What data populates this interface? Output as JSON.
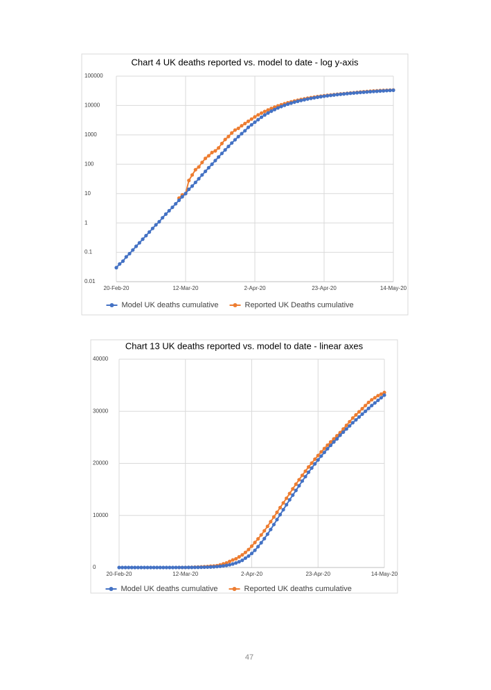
{
  "chart_data": [
    {
      "type": "line",
      "title": "Chart 4 UK deaths reported vs. model to date - log y-axis",
      "log_y": true,
      "grid": true,
      "legend": "bottom",
      "x": [
        "2020-02-20",
        "2020-02-21",
        "2020-02-22",
        "2020-02-23",
        "2020-02-24",
        "2020-02-25",
        "2020-02-26",
        "2020-02-27",
        "2020-02-28",
        "2020-02-29",
        "2020-03-01",
        "2020-03-02",
        "2020-03-03",
        "2020-03-04",
        "2020-03-05",
        "2020-03-06",
        "2020-03-07",
        "2020-03-08",
        "2020-03-09",
        "2020-03-10",
        "2020-03-11",
        "2020-03-12",
        "2020-03-13",
        "2020-03-14",
        "2020-03-15",
        "2020-03-16",
        "2020-03-17",
        "2020-03-18",
        "2020-03-19",
        "2020-03-20",
        "2020-03-21",
        "2020-03-22",
        "2020-03-23",
        "2020-03-24",
        "2020-03-25",
        "2020-03-26",
        "2020-03-27",
        "2020-03-28",
        "2020-03-29",
        "2020-03-30",
        "2020-03-31",
        "2020-04-01",
        "2020-04-02",
        "2020-04-03",
        "2020-04-04",
        "2020-04-05",
        "2020-04-06",
        "2020-04-07",
        "2020-04-08",
        "2020-04-09",
        "2020-04-10",
        "2020-04-11",
        "2020-04-12",
        "2020-04-13",
        "2020-04-14",
        "2020-04-15",
        "2020-04-16",
        "2020-04-17",
        "2020-04-18",
        "2020-04-19",
        "2020-04-20",
        "2020-04-21",
        "2020-04-22",
        "2020-04-23",
        "2020-04-24",
        "2020-04-25",
        "2020-04-26",
        "2020-04-27",
        "2020-04-28",
        "2020-04-29",
        "2020-04-30",
        "2020-05-01",
        "2020-05-02",
        "2020-05-03",
        "2020-05-04",
        "2020-05-05",
        "2020-05-06",
        "2020-05-07",
        "2020-05-08",
        "2020-05-09",
        "2020-05-10",
        "2020-05-11",
        "2020-05-12",
        "2020-05-13",
        "2020-05-14"
      ],
      "xlim": [
        "2020-02-20",
        "2020-05-14"
      ],
      "xticks": [
        {
          "value": "2020-02-20",
          "label": "20-Feb-20"
        },
        {
          "value": "2020-03-12",
          "label": "12-Mar-20"
        },
        {
          "value": "2020-04-02",
          "label": "2-Apr-20"
        },
        {
          "value": "2020-04-23",
          "label": "23-Apr-20"
        },
        {
          "value": "2020-05-14",
          "label": "14-May-20"
        }
      ],
      "ylim": [
        0.01,
        100000
      ],
      "yticks": [
        0.01,
        0.1,
        1,
        10,
        100,
        1000,
        10000,
        100000
      ],
      "series": [
        {
          "name": "Model UK deaths cumulative",
          "color": "#4472c4",
          "values": [
            0.03,
            0.04,
            0.05,
            0.07,
            0.09,
            0.12,
            0.16,
            0.21,
            0.28,
            0.37,
            0.49,
            0.65,
            0.86,
            1.1,
            1.5,
            2.0,
            2.6,
            3.4,
            4.5,
            5.9,
            7.8,
            10,
            14,
            18,
            24,
            32,
            43,
            57,
            76,
            100,
            133,
            176,
            233,
            307,
            403,
            526,
            680,
            870,
            1100,
            1380,
            1800,
            2200,
            2700,
            3300,
            4000,
            4750,
            5550,
            6400,
            7300,
            8250,
            9200,
            10150,
            11100,
            12050,
            13000,
            13900,
            14800,
            15700,
            16600,
            17450,
            18300,
            19100,
            19900,
            20650,
            21400,
            22100,
            22800,
            23450,
            24100,
            24700,
            25400,
            26000,
            26600,
            27200,
            27800,
            28350,
            28900,
            29450,
            30000,
            30550,
            31100,
            31600,
            32100,
            32600,
            33100
          ]
        },
        {
          "name": "Reported UK Deaths cumulative",
          "color": "#ed7d31",
          "values": [
            null,
            null,
            null,
            null,
            null,
            null,
            null,
            null,
            null,
            null,
            null,
            null,
            null,
            null,
            null,
            null,
            null,
            null,
            null,
            7,
            9,
            10,
            28,
            43,
            65,
            81,
            115,
            158,
            194,
            250,
            285,
            359,
            508,
            694,
            877,
            1161,
            1455,
            1669,
            2043,
            2425,
            2900,
            3450,
            4100,
            4800,
            5500,
            6250,
            7050,
            7900,
            8800,
            9700,
            10600,
            11500,
            12400,
            13300,
            14200,
            15100,
            16000,
            16850,
            17700,
            18500,
            19300,
            20050,
            20800,
            21500,
            22200,
            22850,
            23500,
            24100,
            24700,
            25300,
            25900,
            26600,
            27300,
            28000,
            28700,
            29300,
            29900,
            30500,
            31100,
            31700,
            32200,
            32600,
            33000,
            33300,
            33600
          ]
        }
      ]
    },
    {
      "type": "line",
      "title": "Chart 13 UK deaths reported vs. model to date -  linear axes",
      "log_y": false,
      "grid": true,
      "legend": "bottom",
      "x": [
        "2020-02-20",
        "2020-02-21",
        "2020-02-22",
        "2020-02-23",
        "2020-02-24",
        "2020-02-25",
        "2020-02-26",
        "2020-02-27",
        "2020-02-28",
        "2020-02-29",
        "2020-03-01",
        "2020-03-02",
        "2020-03-03",
        "2020-03-04",
        "2020-03-05",
        "2020-03-06",
        "2020-03-07",
        "2020-03-08",
        "2020-03-09",
        "2020-03-10",
        "2020-03-11",
        "2020-03-12",
        "2020-03-13",
        "2020-03-14",
        "2020-03-15",
        "2020-03-16",
        "2020-03-17",
        "2020-03-18",
        "2020-03-19",
        "2020-03-20",
        "2020-03-21",
        "2020-03-22",
        "2020-03-23",
        "2020-03-24",
        "2020-03-25",
        "2020-03-26",
        "2020-03-27",
        "2020-03-28",
        "2020-03-29",
        "2020-03-30",
        "2020-03-31",
        "2020-04-01",
        "2020-04-02",
        "2020-04-03",
        "2020-04-04",
        "2020-04-05",
        "2020-04-06",
        "2020-04-07",
        "2020-04-08",
        "2020-04-09",
        "2020-04-10",
        "2020-04-11",
        "2020-04-12",
        "2020-04-13",
        "2020-04-14",
        "2020-04-15",
        "2020-04-16",
        "2020-04-17",
        "2020-04-18",
        "2020-04-19",
        "2020-04-20",
        "2020-04-21",
        "2020-04-22",
        "2020-04-23",
        "2020-04-24",
        "2020-04-25",
        "2020-04-26",
        "2020-04-27",
        "2020-04-28",
        "2020-04-29",
        "2020-04-30",
        "2020-05-01",
        "2020-05-02",
        "2020-05-03",
        "2020-05-04",
        "2020-05-05",
        "2020-05-06",
        "2020-05-07",
        "2020-05-08",
        "2020-05-09",
        "2020-05-10",
        "2020-05-11",
        "2020-05-12",
        "2020-05-13",
        "2020-05-14"
      ],
      "xlim": [
        "2020-02-20",
        "2020-05-14"
      ],
      "xticks": [
        {
          "value": "2020-02-20",
          "label": "20-Feb-20"
        },
        {
          "value": "2020-03-12",
          "label": "12-Mar-20"
        },
        {
          "value": "2020-04-02",
          "label": "2-Apr-20"
        },
        {
          "value": "2020-04-23",
          "label": "23-Apr-20"
        },
        {
          "value": "2020-05-14",
          "label": "14-May-20"
        }
      ],
      "ylim": [
        0,
        40000
      ],
      "yticks": [
        0,
        10000,
        20000,
        30000,
        40000
      ],
      "series": [
        {
          "name": "Model UK deaths cumulative",
          "color": "#4472c4",
          "values": [
            0.03,
            0.04,
            0.05,
            0.07,
            0.09,
            0.12,
            0.16,
            0.21,
            0.28,
            0.37,
            0.49,
            0.65,
            0.86,
            1.1,
            1.5,
            2.0,
            2.6,
            3.4,
            4.5,
            5.9,
            7.8,
            10,
            14,
            18,
            24,
            32,
            43,
            57,
            76,
            100,
            133,
            176,
            233,
            307,
            403,
            526,
            680,
            870,
            1100,
            1380,
            1800,
            2200,
            2700,
            3300,
            4000,
            4750,
            5550,
            6400,
            7300,
            8250,
            9200,
            10150,
            11100,
            12050,
            13000,
            13900,
            14800,
            15700,
            16600,
            17450,
            18300,
            19100,
            19900,
            20650,
            21400,
            22100,
            22800,
            23450,
            24100,
            24700,
            25400,
            26000,
            26600,
            27200,
            27800,
            28350,
            28900,
            29450,
            30000,
            30550,
            31100,
            31600,
            32100,
            32600,
            33100
          ]
        },
        {
          "name": "Reported UK deaths cumulative",
          "color": "#ed7d31",
          "values": [
            null,
            null,
            null,
            null,
            null,
            null,
            null,
            null,
            null,
            null,
            null,
            null,
            null,
            null,
            null,
            null,
            null,
            null,
            null,
            7,
            9,
            10,
            28,
            43,
            65,
            81,
            115,
            158,
            194,
            250,
            285,
            359,
            508,
            694,
            877,
            1161,
            1455,
            1669,
            2043,
            2425,
            2900,
            3450,
            4100,
            4800,
            5500,
            6250,
            7050,
            7900,
            8800,
            9700,
            10600,
            11500,
            12400,
            13300,
            14200,
            15100,
            16000,
            16850,
            17700,
            18500,
            19300,
            20050,
            20800,
            21500,
            22200,
            22850,
            23500,
            24100,
            24700,
            25300,
            25900,
            26600,
            27300,
            28000,
            28700,
            29300,
            29900,
            30500,
            31100,
            31700,
            32200,
            32600,
            33000,
            33300,
            33600
          ]
        }
      ]
    }
  ],
  "page_number": "47"
}
